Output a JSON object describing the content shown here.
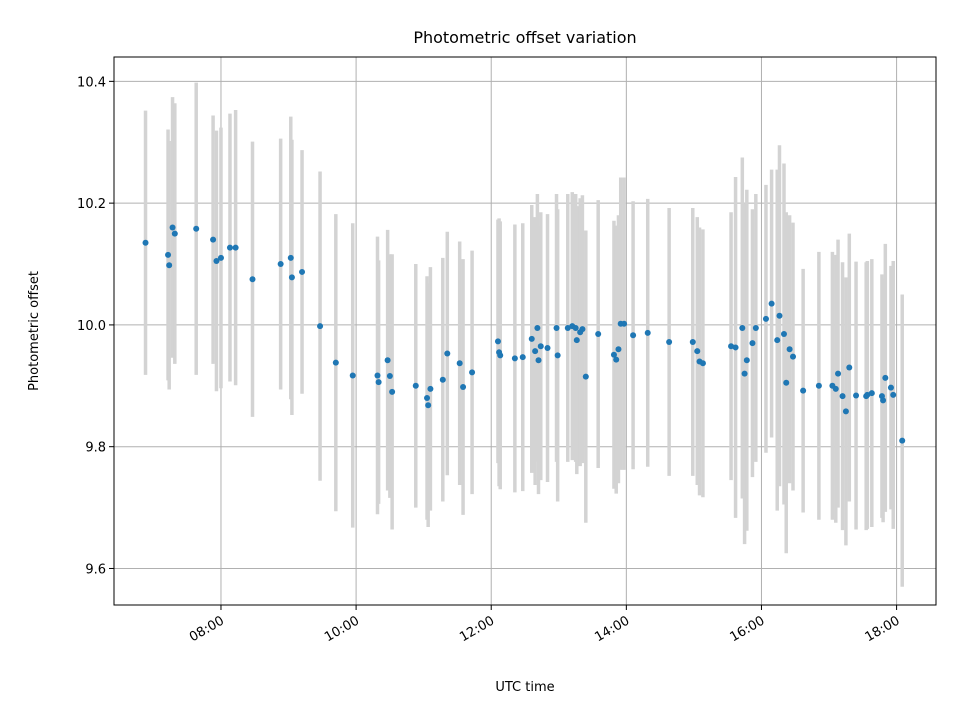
{
  "chart_data": {
    "type": "scatter",
    "title": "Photometric offset variation",
    "xlabel": "UTC time",
    "ylabel": "Photometric offset",
    "x_ticks": [
      "08:00",
      "10:00",
      "12:00",
      "14:00",
      "16:00",
      "18:00"
    ],
    "y_ticks": [
      "9.6",
      "9.8",
      "10.0",
      "10.2",
      "10.4"
    ],
    "xlim": [
      "06:25",
      "18:35"
    ],
    "ylim": [
      9.54,
      10.44
    ],
    "grid": true,
    "legend": false,
    "colors": {
      "marker": "#1f77b4",
      "errorbar": "#d3d3d3",
      "grid": "#b0b0b0"
    },
    "series": [
      {
        "x": [
          "06:53",
          "07:13",
          "07:14",
          "07:17",
          "07:19",
          "07:38",
          "07:53",
          "07:56",
          "08:00",
          "08:08",
          "08:13",
          "08:28",
          "08:53",
          "09:02",
          "09:03",
          "09:12",
          "09:28",
          "09:42",
          "09:57",
          "10:19",
          "10:20",
          "10:28",
          "10:30",
          "10:32",
          "10:53",
          "11:03",
          "11:04",
          "11:06",
          "11:17",
          "11:21",
          "11:32",
          "11:35",
          "11:43",
          "12:06",
          "12:07",
          "12:08",
          "12:21",
          "12:28",
          "12:36",
          "12:39",
          "12:41",
          "12:42",
          "12:44",
          "12:50",
          "12:58",
          "12:59",
          "13:08",
          "13:12",
          "13:15",
          "13:16",
          "13:19",
          "13:21",
          "13:24",
          "13:35",
          "13:49",
          "13:51",
          "13:53",
          "13:55",
          "13:58",
          "14:06",
          "14:19",
          "14:38",
          "14:59",
          "15:03",
          "15:05",
          "15:08",
          "15:33",
          "15:37",
          "15:43",
          "15:45",
          "15:47",
          "15:52",
          "15:55",
          "16:04",
          "16:09",
          "16:14",
          "16:16",
          "16:20",
          "16:22",
          "16:25",
          "16:28",
          "16:37",
          "16:51",
          "17:03",
          "17:06",
          "17:08",
          "17:12",
          "17:15",
          "17:18",
          "17:24",
          "17:33",
          "17:34",
          "17:38",
          "17:47",
          "17:48",
          "17:50",
          "17:55",
          "17:57",
          "18:05"
        ],
        "y": [
          10.135,
          10.115,
          10.098,
          10.16,
          10.15,
          10.158,
          10.14,
          10.105,
          10.11,
          10.127,
          10.127,
          10.075,
          10.1,
          10.11,
          10.078,
          10.087,
          9.998,
          9.938,
          9.917,
          9.917,
          9.906,
          9.942,
          9.916,
          9.89,
          9.9,
          9.88,
          9.868,
          9.895,
          9.91,
          9.953,
          9.937,
          9.898,
          9.922,
          9.973,
          9.955,
          9.95,
          9.945,
          9.947,
          9.977,
          9.957,
          9.995,
          9.942,
          9.965,
          9.962,
          9.995,
          9.95,
          9.995,
          9.998,
          9.995,
          9.975,
          9.988,
          9.993,
          9.915,
          9.985,
          9.951,
          9.943,
          9.96,
          10.002,
          10.002,
          9.983,
          9.987,
          9.972,
          9.972,
          9.957,
          9.94,
          9.937,
          9.965,
          9.963,
          9.995,
          9.92,
          9.942,
          9.97,
          9.995,
          10.01,
          10.035,
          9.975,
          10.015,
          9.985,
          9.905,
          9.96,
          9.948,
          9.892,
          9.9,
          9.9,
          9.895,
          9.92,
          9.883,
          9.858,
          9.93,
          9.884,
          9.883,
          9.885,
          9.888,
          9.883,
          9.876,
          9.913,
          9.897,
          9.885,
          9.81
        ],
        "yerr": [
          0.217,
          0.206,
          0.204,
          0.214,
          0.214,
          0.24,
          0.204,
          0.214,
          0.214,
          0.22,
          0.226,
          0.226,
          0.206,
          0.232,
          0.226,
          0.2,
          0.254,
          0.244,
          0.25,
          0.228,
          0.2,
          0.214,
          0.2,
          0.226,
          0.2,
          0.2,
          0.2,
          0.2,
          0.2,
          0.2,
          0.2,
          0.21,
          0.2,
          0.2,
          0.22,
          0.22,
          0.22,
          0.22,
          0.22,
          0.22,
          0.22,
          0.22,
          0.22,
          0.22,
          0.22,
          0.24,
          0.22,
          0.22,
          0.22,
          0.22,
          0.22,
          0.22,
          0.24,
          0.22,
          0.22,
          0.22,
          0.22,
          0.24,
          0.24,
          0.22,
          0.22,
          0.22,
          0.22,
          0.22,
          0.22,
          0.22,
          0.22,
          0.28,
          0.28,
          0.28,
          0.28,
          0.22,
          0.22,
          0.22,
          0.22,
          0.28,
          0.28,
          0.28,
          0.28,
          0.22,
          0.22,
          0.2,
          0.22,
          0.22,
          0.22,
          0.22,
          0.22,
          0.22,
          0.22,
          0.22,
          0.22,
          0.22,
          0.22,
          0.2,
          0.2,
          0.22,
          0.2,
          0.22,
          0.24
        ]
      }
    ]
  }
}
